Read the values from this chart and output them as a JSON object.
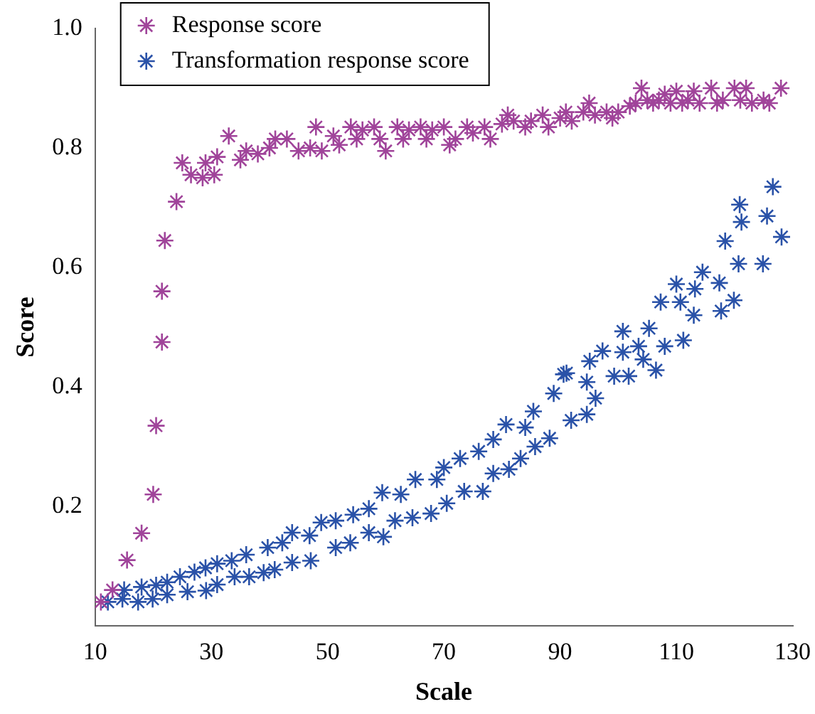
{
  "chart_data": {
    "type": "scatter",
    "xlabel": "Scale",
    "ylabel": "Score",
    "xlim": [
      10,
      130
    ],
    "xticks": [
      10,
      30,
      50,
      70,
      90,
      110,
      130
    ],
    "ylim": [
      0,
      1
    ],
    "yticks": [
      0.2,
      0.4,
      0.6,
      0.8,
      {
        "value": 1,
        "label": "1.0"
      }
    ],
    "grid": false,
    "legend": "top left",
    "marker": "cross",
    "series": [
      {
        "name": "Response score",
        "color": "#a0449a",
        "x": [
          11,
          13,
          15.5,
          18,
          20,
          20.5,
          21.5,
          21.5,
          22,
          24,
          25,
          26.5,
          28.5,
          29,
          30.5,
          31,
          33,
          35,
          36,
          38,
          40,
          41,
          43,
          45,
          47,
          48,
          49,
          51,
          52,
          54,
          55,
          56,
          58,
          59,
          60,
          62,
          63,
          64,
          66,
          67,
          68,
          70,
          71,
          72,
          74,
          75,
          77,
          78,
          80,
          81,
          82,
          84,
          85,
          87,
          88,
          90,
          91,
          92,
          94,
          95,
          96,
          98,
          99,
          100,
          102,
          103,
          104,
          105,
          106,
          107,
          108,
          109,
          110,
          111,
          112,
          113,
          114,
          116,
          117,
          118,
          120,
          121,
          122,
          123,
          125,
          126,
          128
        ],
        "values": [
          0.04,
          0.06,
          0.11,
          0.155,
          0.22,
          0.335,
          0.475,
          0.56,
          0.645,
          0.71,
          0.775,
          0.755,
          0.75,
          0.775,
          0.755,
          0.785,
          0.82,
          0.78,
          0.795,
          0.79,
          0.8,
          0.815,
          0.815,
          0.795,
          0.8,
          0.835,
          0.795,
          0.82,
          0.805,
          0.835,
          0.815,
          0.83,
          0.835,
          0.815,
          0.795,
          0.835,
          0.815,
          0.83,
          0.835,
          0.815,
          0.83,
          0.835,
          0.805,
          0.815,
          0.835,
          0.825,
          0.835,
          0.815,
          0.84,
          0.855,
          0.845,
          0.835,
          0.845,
          0.855,
          0.835,
          0.85,
          0.86,
          0.845,
          0.86,
          0.875,
          0.855,
          0.86,
          0.85,
          0.86,
          0.87,
          0.875,
          0.9,
          0.88,
          0.875,
          0.88,
          0.89,
          0.875,
          0.895,
          0.875,
          0.88,
          0.895,
          0.875,
          0.9,
          0.875,
          0.88,
          0.9,
          0.88,
          0.9,
          0.875,
          0.88,
          0.875,
          0.9
        ]
      },
      {
        "name": "Transformation response score",
        "color": "#2a52a8",
        "x": [
          12.2,
          15,
          18,
          20.5,
          22.4,
          24.6,
          27.1,
          29,
          31,
          33.5,
          36,
          39.7,
          42.2,
          43.9,
          46.9,
          48.9,
          51.4,
          54.4,
          57.1,
          59.4,
          62.6,
          65.1,
          68.8,
          70,
          72.8,
          76,
          78.5,
          80.7,
          84,
          85.4,
          88.9,
          90.6,
          14.7,
          17.4,
          19.9,
          22.4,
          25.9,
          29.1,
          31,
          34,
          36.5,
          39,
          40.9,
          43.9,
          47.1,
          51.4,
          53.9,
          57.1,
          59.6,
          61.6,
          64.6,
          67.8,
          70.5,
          73.5,
          76.7,
          78.5,
          81.2,
          83.2,
          85.7,
          88.2,
          91.9,
          94.6,
          96.1,
          94.6,
          91.1,
          95.1,
          97.3,
          100.8,
          100.8,
          99.3,
          101.8,
          103.5,
          105.3,
          104.3,
          106.5,
          108,
          111.2,
          107.3,
          110.7,
          113,
          110,
          113.2,
          114.5,
          117.4,
          117.7,
          119.9,
          118.4,
          120.7,
          121.2,
          120.9,
          125.6,
          124.9,
          126.6,
          128.1
        ],
        "values": [
          0.04,
          0.06,
          0.065,
          0.068,
          0.073,
          0.082,
          0.09,
          0.097,
          0.104,
          0.109,
          0.119,
          0.131,
          0.139,
          0.156,
          0.151,
          0.173,
          0.176,
          0.186,
          0.196,
          0.223,
          0.22,
          0.245,
          0.245,
          0.265,
          0.28,
          0.292,
          0.312,
          0.337,
          0.332,
          0.359,
          0.389,
          0.421,
          0.045,
          0.04,
          0.045,
          0.052,
          0.057,
          0.059,
          0.069,
          0.082,
          0.082,
          0.089,
          0.094,
          0.106,
          0.109,
          0.131,
          0.139,
          0.156,
          0.149,
          0.176,
          0.181,
          0.188,
          0.205,
          0.225,
          0.225,
          0.255,
          0.262,
          0.28,
          0.3,
          0.314,
          0.344,
          0.354,
          0.381,
          0.408,
          0.423,
          0.443,
          0.46,
          0.493,
          0.458,
          0.418,
          0.418,
          0.468,
          0.498,
          0.446,
          0.428,
          0.468,
          0.478,
          0.542,
          0.542,
          0.52,
          0.572,
          0.564,
          0.592,
          0.574,
          0.527,
          0.545,
          0.644,
          0.606,
          0.676,
          0.705,
          0.686,
          0.606,
          0.735,
          0.651
        ]
      }
    ]
  }
}
